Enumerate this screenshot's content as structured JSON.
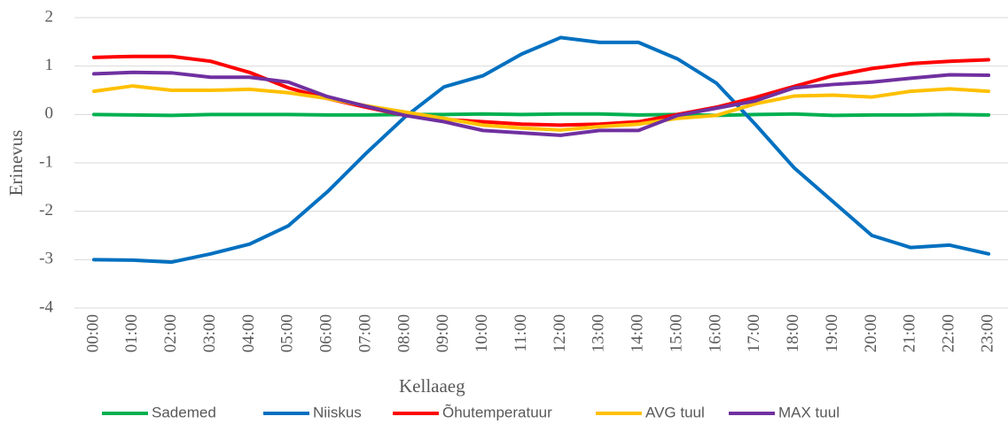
{
  "chart_data": {
    "type": "line",
    "x_label": "Kellaaeg",
    "y_label": "Erinevus",
    "categories": [
      "00:00",
      "01:00",
      "02:00",
      "03:00",
      "04:00",
      "05:00",
      "06:00",
      "07:00",
      "08:00",
      "09:00",
      "10:00",
      "11:00",
      "12:00",
      "13:00",
      "14:00",
      "15:00",
      "16:00",
      "17:00",
      "18:00",
      "19:00",
      "20:00",
      "21:00",
      "22:00",
      "23:00"
    ],
    "series": [
      {
        "name": "Sademed",
        "color": "#00b050",
        "values": [
          0,
          -0.01,
          -0.02,
          0,
          0,
          0,
          -0.01,
          -0.01,
          0,
          0,
          0.01,
          0,
          0.01,
          0.01,
          -0.01,
          0,
          -0.02,
          0,
          0.01,
          -0.02,
          -0.01,
          -0.01,
          0,
          -0.01
        ]
      },
      {
        "name": "Niiskus",
        "color": "#0070c0",
        "values": [
          -3.0,
          -3.01,
          -3.05,
          -2.88,
          -2.68,
          -2.3,
          -1.6,
          -0.8,
          -0.05,
          0.57,
          0.8,
          1.25,
          1.59,
          1.49,
          1.49,
          1.15,
          0.65,
          -0.2,
          -1.1,
          -1.8,
          -2.5,
          -2.75,
          -2.7,
          -2.88
        ]
      },
      {
        "name": "Õhutemperatuur",
        "color": "#ff0000",
        "values": [
          1.18,
          1.2,
          1.2,
          1.1,
          0.87,
          0.55,
          0.33,
          0.15,
          -0.02,
          -0.1,
          -0.15,
          -0.2,
          -0.22,
          -0.2,
          -0.15,
          0.0,
          0.15,
          0.35,
          0.58,
          0.8,
          0.95,
          1.05,
          1.1,
          1.13
        ]
      },
      {
        "name": "AVG tuul",
        "color": "#ffc000",
        "values": [
          0.48,
          0.59,
          0.5,
          0.5,
          0.52,
          0.45,
          0.33,
          0.18,
          0.05,
          -0.08,
          -0.22,
          -0.28,
          -0.32,
          -0.25,
          -0.2,
          -0.08,
          -0.02,
          0.22,
          0.38,
          0.4,
          0.36,
          0.48,
          0.53,
          0.48
        ]
      },
      {
        "name": "MAX tuul",
        "color": "#7030a0",
        "values": [
          0.84,
          0.87,
          0.86,
          0.77,
          0.77,
          0.67,
          0.37,
          0.17,
          -0.02,
          -0.15,
          -0.33,
          -0.38,
          -0.43,
          -0.33,
          -0.33,
          -0.02,
          0.13,
          0.28,
          0.55,
          0.62,
          0.67,
          0.75,
          0.82,
          0.81
        ]
      }
    ],
    "ylim": [
      -4,
      2
    ],
    "yticks": [
      -4,
      -3,
      -2,
      -1,
      0,
      1,
      2
    ],
    "grid": true,
    "legend": "bottom"
  }
}
